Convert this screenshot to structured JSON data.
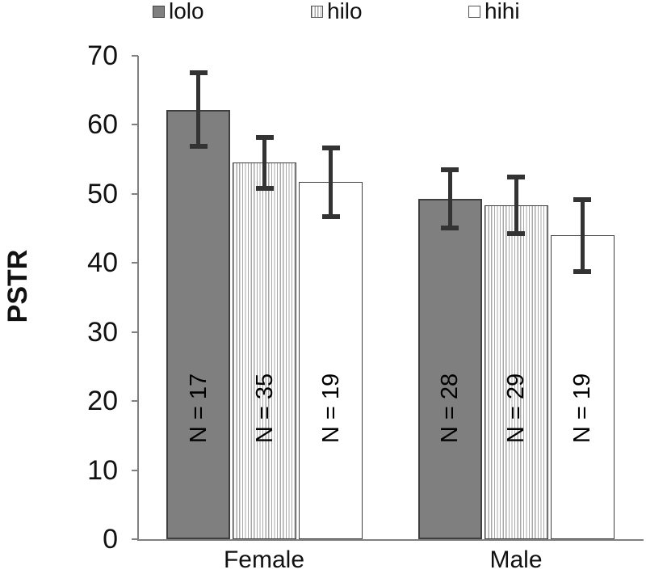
{
  "chart_data": {
    "type": "bar",
    "title": "",
    "ylabel": "PSTR",
    "xlabel": "",
    "categories": [
      "Female",
      "Male"
    ],
    "series": [
      {
        "name": "lolo",
        "style": "solid",
        "values": [
          62.2,
          49.3
        ],
        "errors": [
          5.3,
          4.2
        ],
        "n_labels": [
          "N = 17",
          "N = 28"
        ]
      },
      {
        "name": "hilo",
        "style": "hatch",
        "values": [
          54.5,
          48.4
        ],
        "errors": [
          3.7,
          4.1
        ],
        "n_labels": [
          "N = 35",
          "N = 29"
        ]
      },
      {
        "name": "hihi",
        "style": "white",
        "values": [
          51.7,
          44.0
        ],
        "errors": [
          5.0,
          5.2
        ],
        "n_labels": [
          "N = 19",
          "N = 19"
        ]
      }
    ],
    "ylim": [
      0,
      70
    ],
    "yticks": [
      0,
      10,
      20,
      30,
      40,
      50,
      60,
      70
    ],
    "legend_position": "top",
    "grid": false,
    "colors": {
      "solid_fill": "#7f7f7f",
      "bar_border": "#3f3f3f",
      "hatch_line": "#a8a8a8",
      "white_fill": "#ffffff",
      "error_bar": "#333333",
      "axis": "#808080",
      "text": "#111111"
    }
  }
}
